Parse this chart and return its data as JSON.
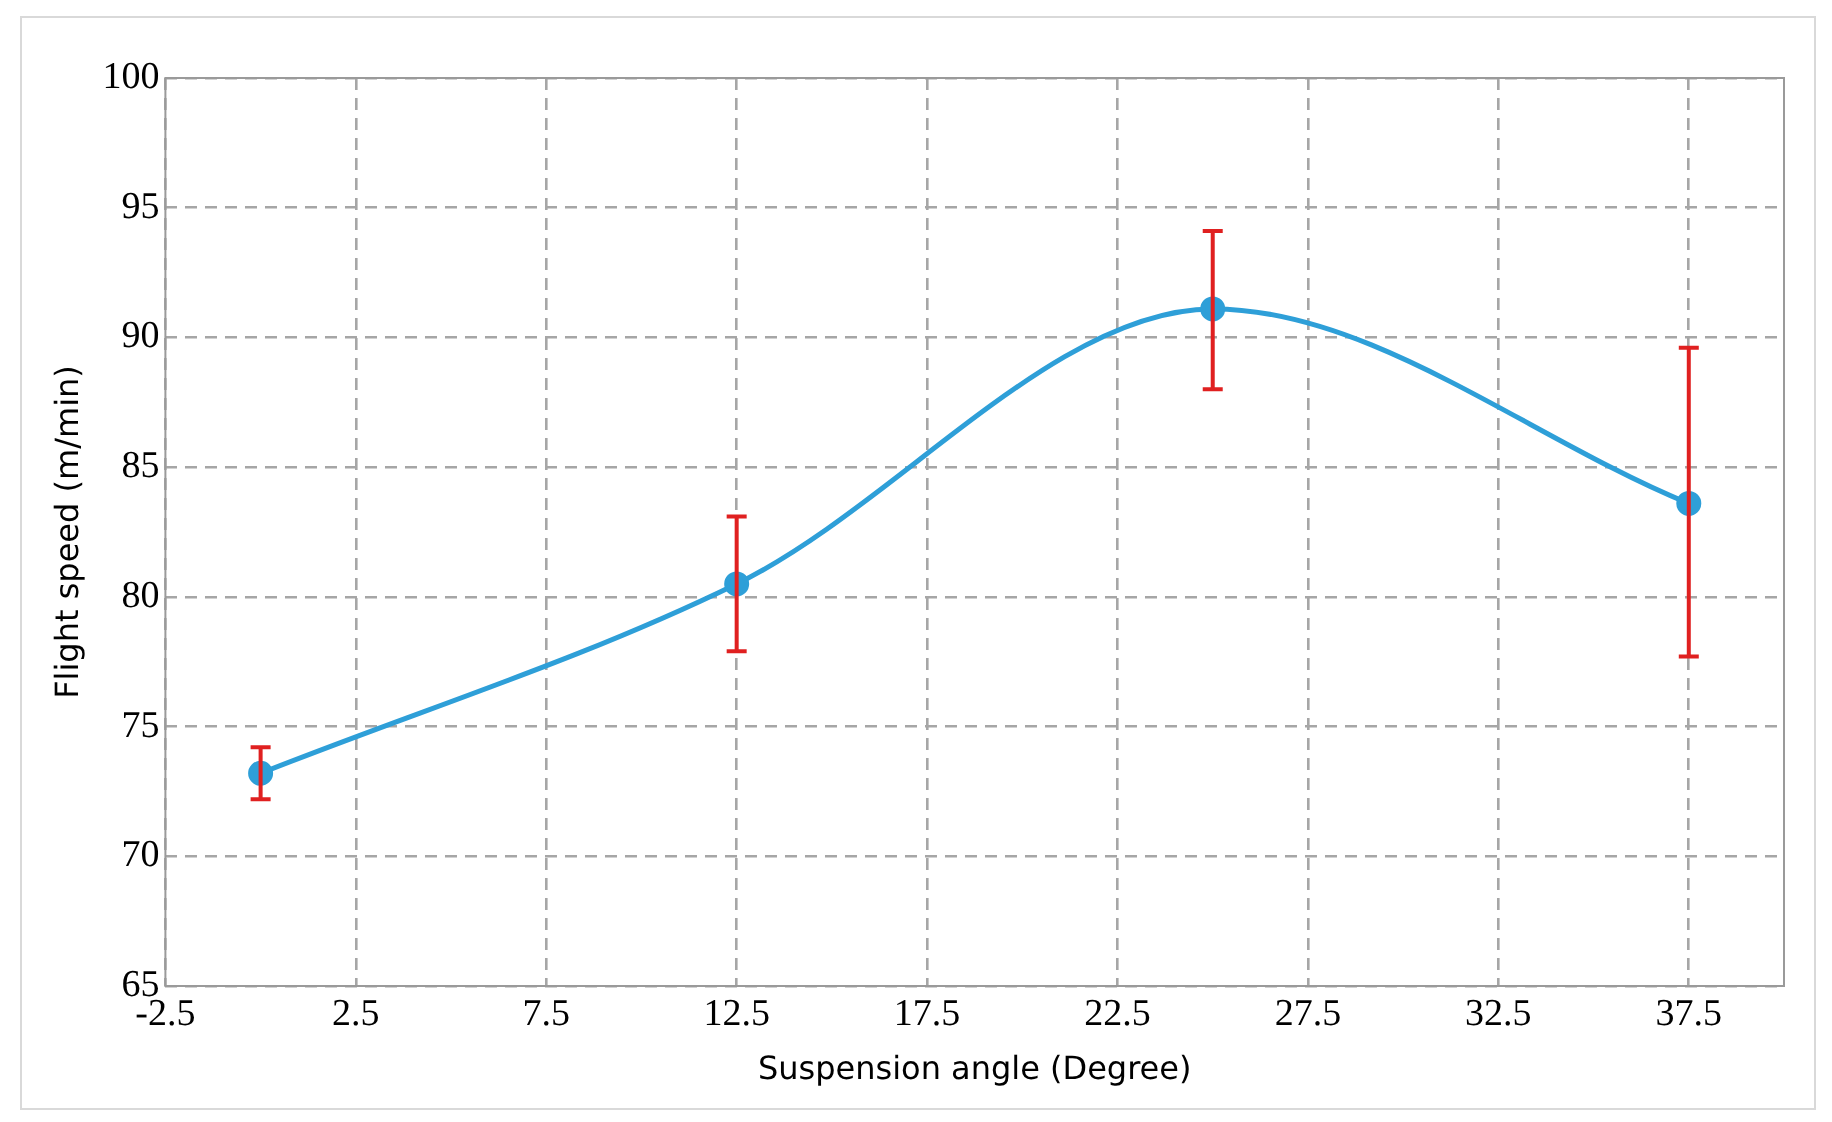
{
  "chart_data": {
    "type": "line",
    "xlabel": "Suspension angle (Degree)",
    "ylabel": "Flight speed (m/min)",
    "x": [
      0,
      12.5,
      25,
      37.5
    ],
    "series": [
      {
        "color": "#2e9fd8",
        "values": [
          73.2,
          80.5,
          91.1,
          83.6
        ],
        "errors": [
          [
            72.2,
            74.2
          ],
          [
            77.9,
            83.1
          ],
          [
            88.0,
            94.1
          ],
          [
            77.7,
            89.6
          ]
        ]
      }
    ],
    "xlim": [
      -2.5,
      40
    ],
    "xticks": [
      -2.5,
      2.5,
      7.5,
      12.5,
      17.5,
      22.5,
      27.5,
      32.5,
      37.5
    ],
    "ylim": [
      65,
      100
    ],
    "yticks": [
      65,
      70,
      75,
      80,
      85,
      90,
      95,
      100
    ],
    "grid": true,
    "legend": false,
    "marker": "circle",
    "line_style": "solid"
  }
}
